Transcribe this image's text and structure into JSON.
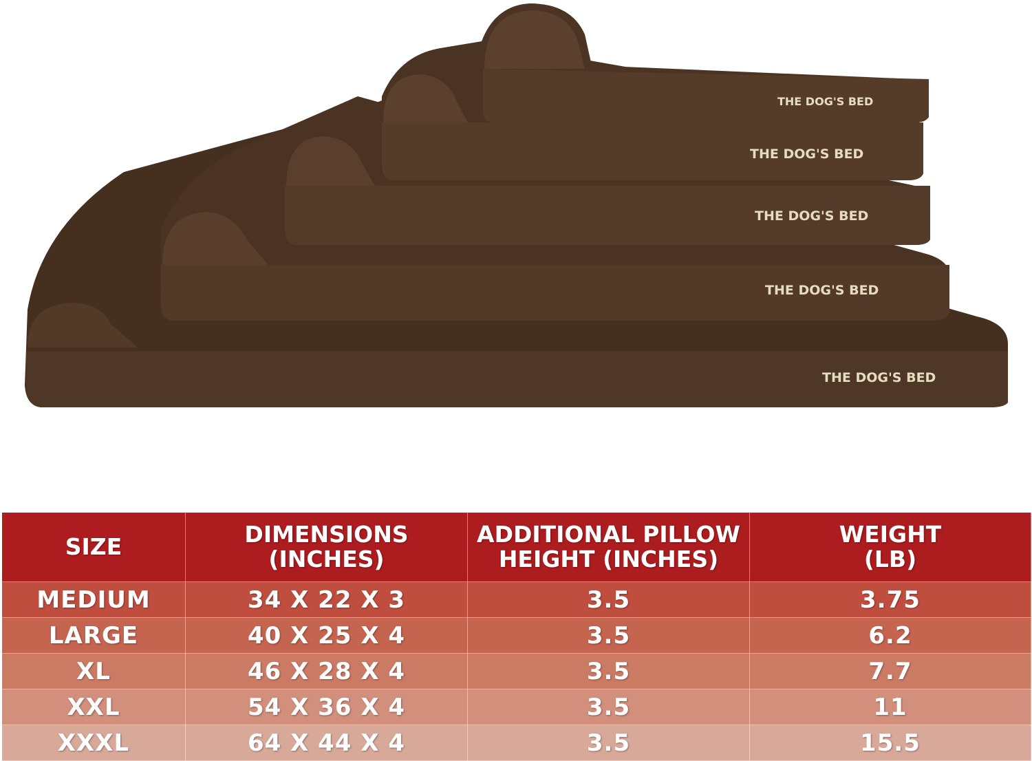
{
  "product": {
    "bed_label": "THE DOG'S BED",
    "bed_color": "#4a3427",
    "bed_count": 5
  },
  "table": {
    "headers": [
      [
        "SIZE"
      ],
      [
        "DIMENSIONS",
        "(INCHES)"
      ],
      [
        "ADDITIONAL PILLOW",
        "HEIGHT (INCHES)"
      ],
      [
        "WEIGHT",
        "(LB)"
      ]
    ],
    "header_color": "#ad1c1f",
    "rows": [
      {
        "size": "MEDIUM",
        "dimensions": "34 X 22 X 3",
        "pillow_height": "3.5",
        "weight": "3.75",
        "color": "#c04e3f"
      },
      {
        "size": "LARGE",
        "dimensions": "40 X 25 X 4",
        "pillow_height": "3.5",
        "weight": "6.2",
        "color": "#c5644f"
      },
      {
        "size": "XL",
        "dimensions": "46 X 28 X 4",
        "pillow_height": "3.5",
        "weight": "7.7",
        "color": "#cb7a64"
      },
      {
        "size": "XXL",
        "dimensions": "54 X 36 X 4",
        "pillow_height": "3.5",
        "weight": "11",
        "color": "#d18f7c"
      },
      {
        "size": "XXXL",
        "dimensions": "64 X 44 X 4",
        "pillow_height": "3.5",
        "weight": "15.5",
        "color": "#d8a899"
      }
    ]
  }
}
